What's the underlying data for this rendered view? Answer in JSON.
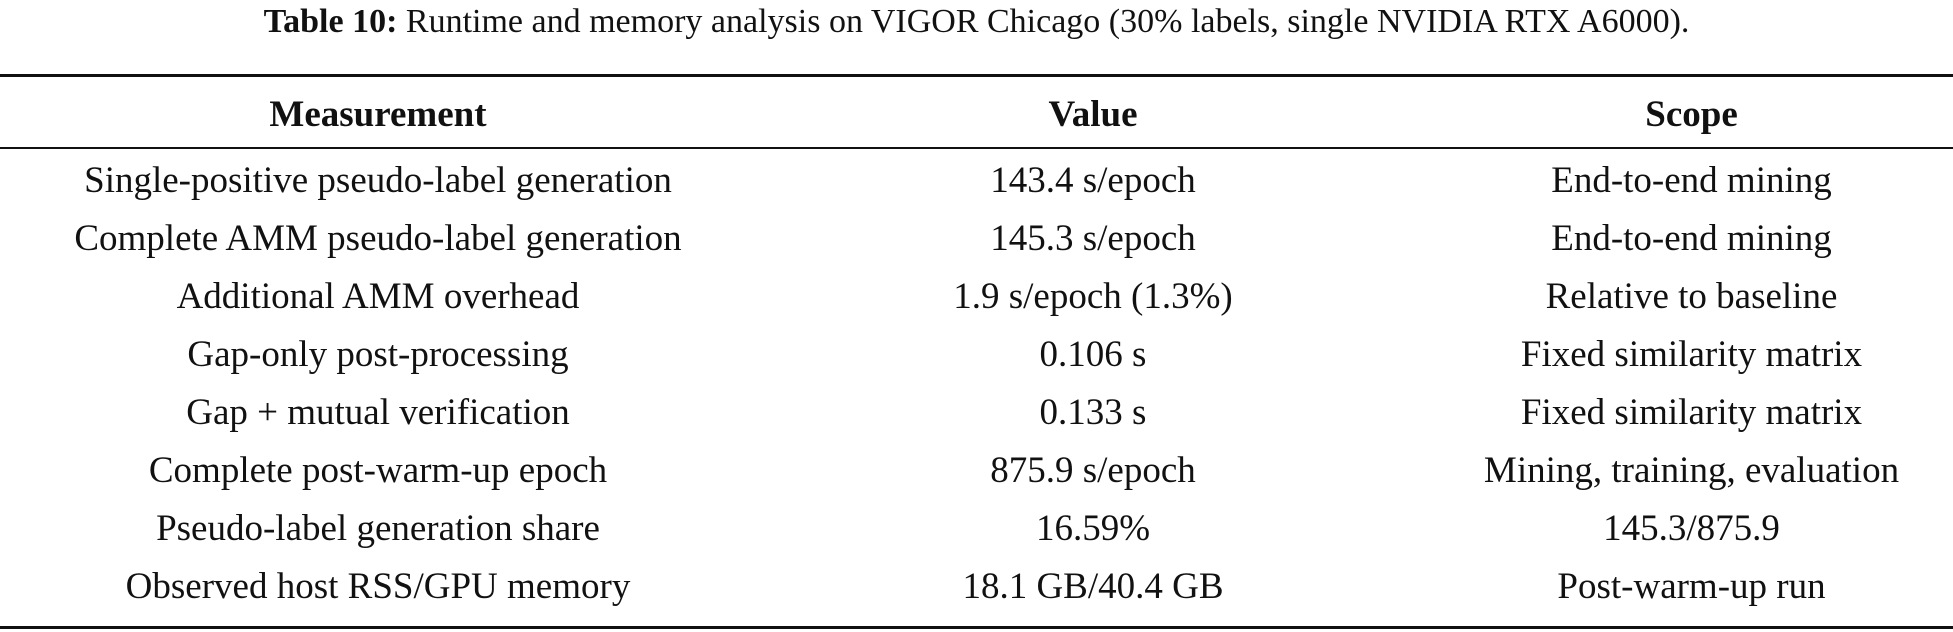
{
  "caption": {
    "label": "Table 10:",
    "text": "Runtime and memory analysis on VIGOR Chicago (30% labels, single NVIDIA RTX A6000)."
  },
  "table": {
    "headers": [
      "Measurement",
      "Value",
      "Scope"
    ],
    "rows": [
      [
        "Single-positive pseudo-label generation",
        "143.4 s/epoch",
        "End-to-end mining"
      ],
      [
        "Complete AMM pseudo-label generation",
        "145.3 s/epoch",
        "End-to-end mining"
      ],
      [
        "Additional AMM overhead",
        "1.9 s/epoch (1.3%)",
        "Relative to baseline"
      ],
      [
        "Gap-only post-processing",
        "0.106 s",
        "Fixed similarity matrix"
      ],
      [
        "Gap + mutual verification",
        "0.133 s",
        "Fixed similarity matrix"
      ],
      [
        "Complete post-warm-up epoch",
        "875.9 s/epoch",
        "Mining, training, evaluation"
      ],
      [
        "Pseudo-label generation share",
        "16.59%",
        "145.3/875.9"
      ],
      [
        "Observed host RSS/GPU memory",
        "18.1 GB/40.4 GB",
        "Post-warm-up run"
      ]
    ]
  }
}
